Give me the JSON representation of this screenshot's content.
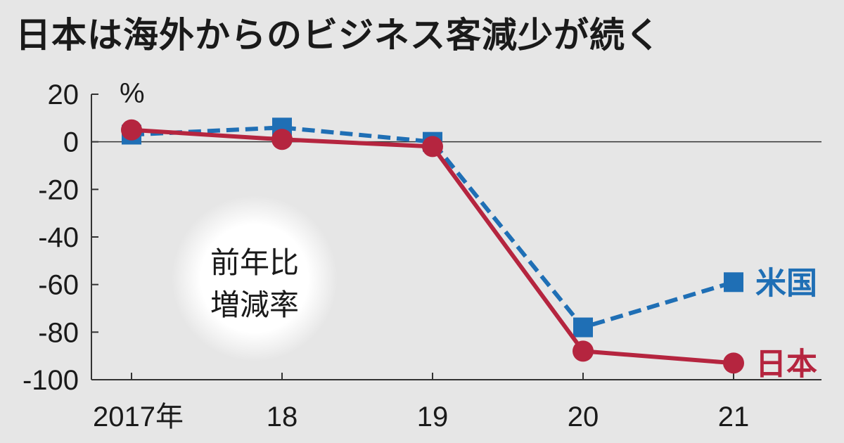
{
  "chart_data": {
    "type": "line",
    "title": "日本は海外からのビジネス客減少が続く",
    "unit": "%",
    "annotation": [
      "前年比",
      "増減率"
    ],
    "categories": [
      "2017年",
      "18",
      "19",
      "20",
      "21"
    ],
    "ylim": [
      -100,
      20
    ],
    "yticks": [
      "20",
      "0",
      "-20",
      "-40",
      "-60",
      "-80",
      "-100"
    ],
    "series": [
      {
        "name": "米国",
        "values": [
          3,
          6,
          0,
          -78,
          -59
        ],
        "color": "#1f6fb5",
        "marker": "square",
        "dashed": true
      },
      {
        "name": "日本",
        "values": [
          5,
          1,
          -2,
          -88,
          -93
        ],
        "color": "#b5253f",
        "marker": "circle",
        "dashed": false
      }
    ],
    "grid": false,
    "legend": "inline-right"
  }
}
